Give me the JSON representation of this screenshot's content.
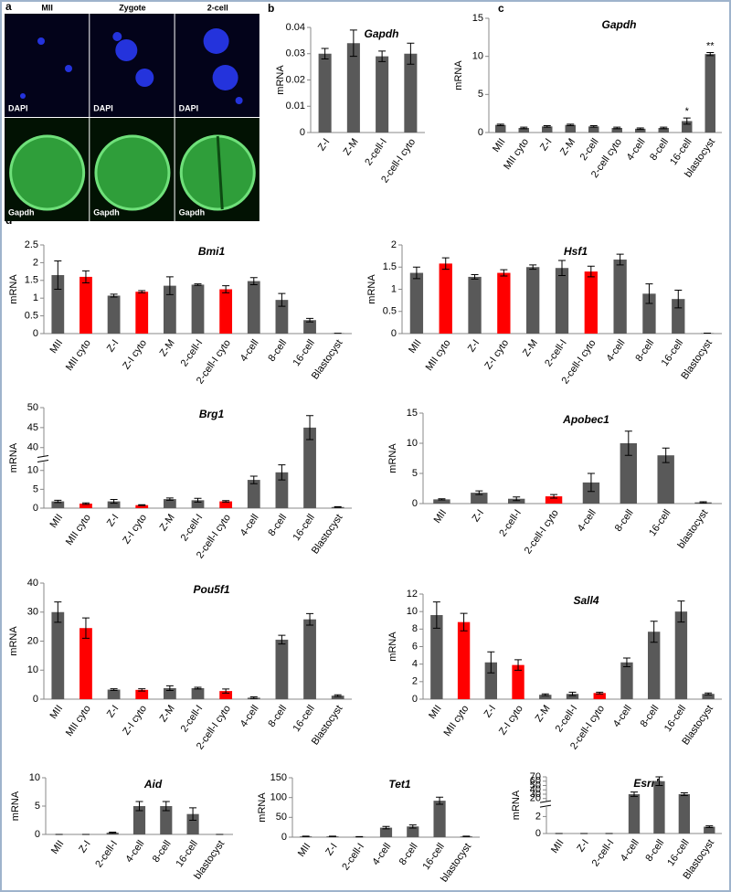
{
  "panel_labels": [
    "a",
    "b",
    "c",
    "d"
  ],
  "panel_a": {
    "columns": [
      "MII",
      "Zygote",
      "2-cell"
    ],
    "rows": [
      "DAPI",
      "Gapdh"
    ]
  },
  "chart_data": [
    {
      "type": "bar",
      "title": "Gapdh",
      "ylabel": "mRNA",
      "categories": [
        "Z-I",
        "Z-M",
        "2-cell-I",
        "2-cell-I cyto"
      ],
      "values": [
        0.03,
        0.034,
        0.029,
        0.03
      ],
      "errors": [
        0.002,
        0.005,
        0.002,
        0.004
      ],
      "colors": [
        "#595959",
        "#595959",
        "#595959",
        "#595959"
      ],
      "ylim": [
        0,
        0.04
      ],
      "yticks": [
        0,
        0.01,
        0.02,
        0.03,
        0.04
      ]
    },
    {
      "type": "bar",
      "title": "Gapdh",
      "ylabel": "mRNA",
      "categories": [
        "MII",
        "MII cyto",
        "Z-I",
        "Z-M",
        "2-cell",
        "2-cell cyto",
        "4-cell",
        "8-cell",
        "16-cell",
        "blastocyst"
      ],
      "values": [
        1.0,
        0.6,
        0.8,
        1.0,
        0.8,
        0.6,
        0.5,
        0.6,
        1.5,
        10.3
      ],
      "errors": [
        0.1,
        0.1,
        0.1,
        0.1,
        0.1,
        0.1,
        0.1,
        0.1,
        0.4,
        0.2
      ],
      "significance": [
        null,
        null,
        null,
        null,
        null,
        null,
        null,
        null,
        "*",
        "**"
      ],
      "colors": [
        "#595959",
        "#595959",
        "#595959",
        "#595959",
        "#595959",
        "#595959",
        "#595959",
        "#595959",
        "#595959",
        "#595959"
      ],
      "ylim": [
        0,
        15
      ],
      "yticks": [
        0,
        5,
        10,
        15
      ]
    },
    {
      "type": "bar",
      "title": "Bmi1",
      "ylabel": "mRNA",
      "categories": [
        "MII",
        "MII cyto",
        "Z-I",
        "Z-I cyto",
        "Z-M",
        "2-cell-I",
        "2-cell-I cyto",
        "4-cell",
        "8-cell",
        "16-cell",
        "Blastocyst"
      ],
      "values": [
        1.65,
        1.6,
        1.07,
        1.18,
        1.35,
        1.38,
        1.25,
        1.48,
        0.95,
        0.38,
        0.01
      ],
      "errors": [
        0.4,
        0.17,
        0.04,
        0.03,
        0.25,
        0.02,
        0.1,
        0.1,
        0.18,
        0.05,
        0
      ],
      "colors": [
        "#595959",
        "#ff0000",
        "#595959",
        "#ff0000",
        "#595959",
        "#595959",
        "#ff0000",
        "#595959",
        "#595959",
        "#595959",
        "#595959"
      ],
      "ylim": [
        0,
        2.5
      ],
      "yticks": [
        0,
        0.5,
        1,
        1.5,
        2,
        2.5
      ]
    },
    {
      "type": "bar",
      "title": "Hsf1",
      "ylabel": "mRNA",
      "categories": [
        "MII",
        "MII cyto",
        "Z-I",
        "Z-I cyto",
        "Z-M",
        "2-cell-I",
        "2-cell-I cyto",
        "4-cell",
        "8-cell",
        "16-cell",
        "Blastocyst"
      ],
      "values": [
        1.37,
        1.58,
        1.28,
        1.37,
        1.5,
        1.48,
        1.4,
        1.67,
        0.9,
        0.78,
        0.01
      ],
      "errors": [
        0.13,
        0.13,
        0.05,
        0.07,
        0.05,
        0.17,
        0.12,
        0.12,
        0.22,
        0.2,
        0
      ],
      "colors": [
        "#595959",
        "#ff0000",
        "#595959",
        "#ff0000",
        "#595959",
        "#595959",
        "#ff0000",
        "#595959",
        "#595959",
        "#595959",
        "#595959"
      ],
      "ylim": [
        0,
        2
      ],
      "yticks": [
        0,
        0.5,
        1,
        1.5,
        2
      ]
    },
    {
      "type": "bar",
      "title": "Brg1",
      "ylabel": "mRNA",
      "categories": [
        "MII",
        "MII cyto",
        "Z-I",
        "Z-I cyto",
        "Z-M",
        "2-cell-I",
        "2-cell-I cyto",
        "4-cell",
        "8-cell",
        "16-cell",
        "Blastocyst"
      ],
      "values": [
        1.8,
        1.2,
        1.8,
        0.8,
        2.4,
        2.1,
        1.8,
        7.5,
        9.5,
        45,
        0.3
      ],
      "errors": [
        0.3,
        0.2,
        0.5,
        0.1,
        0.3,
        0.5,
        0.2,
        1,
        2,
        3,
        0.1
      ],
      "colors": [
        "#595959",
        "#ff0000",
        "#595959",
        "#ff0000",
        "#595959",
        "#595959",
        "#ff0000",
        "#595959",
        "#595959",
        "#595959",
        "#595959"
      ],
      "ylim": [
        0,
        50
      ],
      "ybreak": [
        12,
        38
      ],
      "yticks": [
        0,
        5,
        10,
        40,
        45,
        50
      ]
    },
    {
      "type": "bar",
      "title": "Apobec1",
      "ylabel": "mRNA",
      "categories": [
        "MII",
        "Z-I",
        "2-cell-I",
        "2-cell-I cyto",
        "4-cell",
        "8-cell",
        "16-cell",
        "blastocyst"
      ],
      "values": [
        0.7,
        1.8,
        0.8,
        1.2,
        3.5,
        10,
        8,
        0.2
      ],
      "errors": [
        0.1,
        0.3,
        0.3,
        0.3,
        1.5,
        2,
        1.2,
        0.1
      ],
      "colors": [
        "#595959",
        "#595959",
        "#595959",
        "#ff0000",
        "#595959",
        "#595959",
        "#595959",
        "#595959"
      ],
      "ylim": [
        0,
        15
      ],
      "yticks": [
        0,
        5,
        10,
        15
      ]
    },
    {
      "type": "bar",
      "title": "Pou5f1",
      "ylabel": "mRNA",
      "categories": [
        "MII",
        "MII cyto",
        "Z-I",
        "Z-I cyto",
        "Z-M",
        "2-cell-I",
        "2-cell-I cyto",
        "4-cell",
        "8-cell",
        "16-cell",
        "Blastocyst"
      ],
      "values": [
        30,
        24.5,
        3.3,
        3.2,
        3.8,
        3.8,
        2.8,
        0.5,
        20.5,
        27.5,
        1.2
      ],
      "errors": [
        3.5,
        3.5,
        0.3,
        0.4,
        0.8,
        0.3,
        0.7,
        0.3,
        1.5,
        2,
        0.3
      ],
      "colors": [
        "#595959",
        "#ff0000",
        "#595959",
        "#ff0000",
        "#595959",
        "#595959",
        "#ff0000",
        "#595959",
        "#595959",
        "#595959",
        "#595959"
      ],
      "ylim": [
        0,
        40
      ],
      "yticks": [
        0,
        10,
        20,
        30,
        40
      ]
    },
    {
      "type": "bar",
      "title": "Sall4",
      "ylabel": "mRNA",
      "categories": [
        "MII",
        "MII cyto",
        "Z-I",
        "Z-I cyto",
        "Z-M",
        "2-cell-I",
        "2-cell-I cyto",
        "4-cell",
        "8-cell",
        "16-cell",
        "Blastocyst"
      ],
      "values": [
        9.6,
        8.8,
        4.2,
        3.9,
        0.5,
        0.6,
        0.7,
        4.2,
        7.7,
        10,
        0.6
      ],
      "errors": [
        1.5,
        1,
        1.2,
        0.6,
        0.1,
        0.2,
        0.1,
        0.5,
        1.2,
        1.2,
        0.1
      ],
      "colors": [
        "#595959",
        "#ff0000",
        "#595959",
        "#ff0000",
        "#595959",
        "#595959",
        "#ff0000",
        "#595959",
        "#595959",
        "#595959",
        "#595959"
      ],
      "ylim": [
        0,
        12
      ],
      "yticks": [
        0,
        2,
        4,
        6,
        8,
        10,
        12
      ]
    },
    {
      "type": "bar",
      "title": "Aid",
      "ylabel": "mRNA",
      "categories": [
        "MII",
        "Z-I",
        "2-cell-I",
        "4-cell",
        "8-cell",
        "16-cell",
        "blastocyst"
      ],
      "values": [
        0,
        0,
        0.3,
        5,
        5,
        3.6,
        0
      ],
      "errors": [
        0,
        0,
        0.1,
        0.8,
        0.8,
        1.1,
        0
      ],
      "colors": [
        "#595959",
        "#595959",
        "#595959",
        "#595959",
        "#595959",
        "#595959",
        "#595959"
      ],
      "ylim": [
        0,
        10
      ],
      "yticks": [
        0,
        5,
        10
      ]
    },
    {
      "type": "bar",
      "title": "Tet1",
      "ylabel": "mRNA",
      "categories": [
        "MII",
        "Z-I",
        "2-cell-I",
        "4-cell",
        "8-cell",
        "16-cell",
        "blastocyst"
      ],
      "values": [
        2,
        2,
        1,
        24,
        27,
        92,
        2
      ],
      "errors": [
        0.5,
        0.5,
        0.5,
        3,
        4,
        9,
        0.5
      ],
      "colors": [
        "#595959",
        "#595959",
        "#595959",
        "#595959",
        "#595959",
        "#595959",
        "#595959"
      ],
      "ylim": [
        0,
        150
      ],
      "yticks": [
        0,
        50,
        100,
        150
      ]
    },
    {
      "type": "bar",
      "title": "Esrrb",
      "ylabel": "mRNA",
      "categories": [
        "MII",
        "Z-I",
        "2-cell-I",
        "4-cell",
        "8-cell",
        "16-cell",
        "Blastocyst"
      ],
      "values": [
        0,
        0,
        0,
        30,
        60,
        30,
        0.8
      ],
      "errors": [
        0,
        0,
        0,
        5,
        10,
        3,
        0.1
      ],
      "colors": [
        "#595959",
        "#595959",
        "#595959",
        "#595959",
        "#595959",
        "#595959",
        "#595959"
      ],
      "ylim": [
        0,
        70
      ],
      "ybreak": [
        3,
        15
      ],
      "yticks": [
        0,
        2,
        20,
        30,
        40,
        50,
        60,
        70
      ]
    }
  ]
}
